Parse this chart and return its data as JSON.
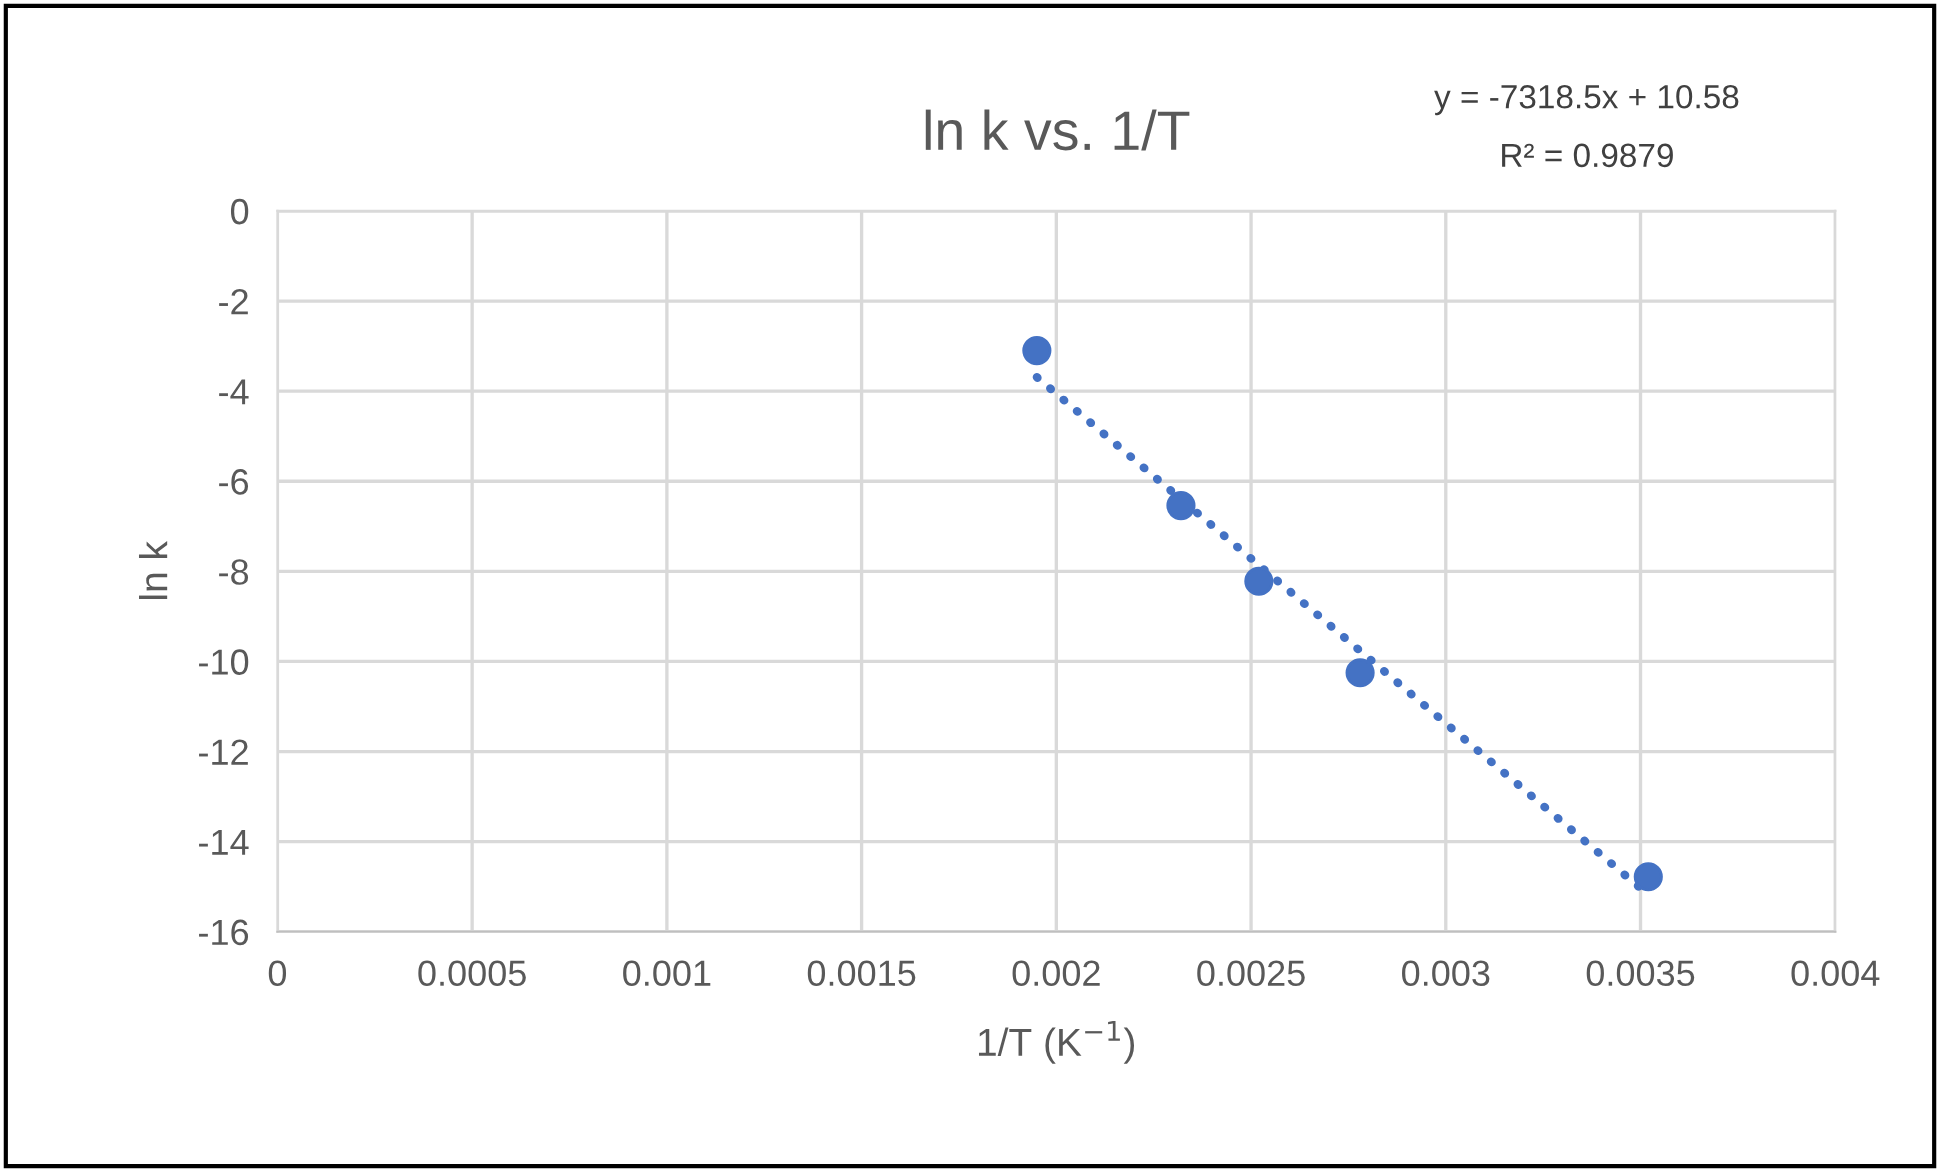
{
  "chart_data": {
    "type": "scatter",
    "title": "ln k vs. 1/T",
    "xlabel": "1/T (K$^{−1}$)",
    "ylabel": "ln k",
    "annotations": [
      "y = -7318.5x + 10.58",
      "R² = 0.9879"
    ],
    "series": [
      {
        "color": "#4472c4",
        "marker": "circle",
        "x": [
          0.00195,
          0.00232,
          0.00252,
          0.00278,
          0.00352
        ],
        "values": [
          -3.1,
          -6.54,
          -8.22,
          -10.25,
          -14.78
        ]
      },
      {
        "type": "line",
        "color": "#4472c4",
        "marker": "none",
        "line_style": "dotted",
        "x": [
          0.00195,
          0.00352
        ],
        "values": [
          -3.69,
          -15.18
        ]
      }
    ],
    "xlim": [
      0,
      0.004
    ],
    "xticks": [
      0,
      0.0005,
      0.001,
      0.0015,
      0.002,
      0.0025,
      0.003,
      0.0035,
      0.004
    ],
    "ylim": [
      -16,
      0
    ],
    "yticks": [
      0,
      -2,
      -4,
      -6,
      -8,
      -10,
      -12,
      -14,
      -16
    ],
    "grid": true,
    "legend": false
  }
}
